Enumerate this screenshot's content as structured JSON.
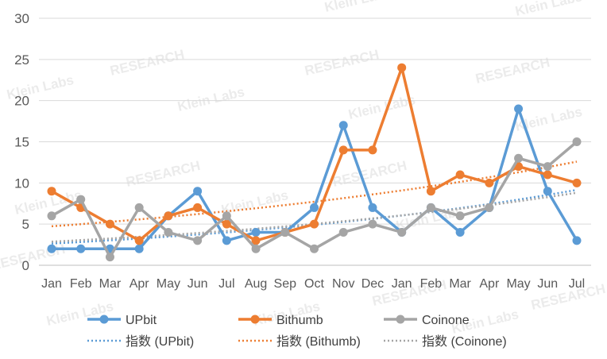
{
  "chart_data": {
    "type": "line",
    "title": "",
    "xlabel": "",
    "ylabel": "",
    "ylim": [
      0,
      30
    ],
    "yticks": [
      0,
      5,
      10,
      15,
      20,
      25,
      30
    ],
    "categories": [
      "Jan",
      "Feb",
      "Mar",
      "Apr",
      "May",
      "Jun",
      "Jul",
      "Aug",
      "Sep",
      "Oct",
      "Nov",
      "Dec",
      "Jan",
      "Feb",
      "Mar",
      "Apr",
      "May",
      "Jun",
      "Jul"
    ],
    "grid": "horizontal",
    "legend_position": "bottom",
    "series": [
      {
        "name": "UPbit",
        "color": "#5b9bd5",
        "values": [
          2,
          2,
          2,
          2,
          6,
          9,
          3,
          4,
          4,
          7,
          17,
          7,
          4,
          7,
          4,
          7,
          19,
          9,
          3
        ]
      },
      {
        "name": "Bithumb",
        "color": "#ed7d31",
        "values": [
          9,
          7,
          5,
          3,
          6,
          7,
          5,
          3,
          4,
          5,
          14,
          14,
          24,
          9,
          11,
          10,
          12,
          11,
          10
        ]
      },
      {
        "name": "Coinone",
        "color": "#a5a5a5",
        "values": [
          6,
          8,
          1,
          7,
          4,
          3,
          6,
          2,
          4,
          2,
          4,
          5,
          4,
          7,
          6,
          7,
          13,
          12,
          15
        ]
      }
    ],
    "trendlines": [
      {
        "name": "指数 (UPbit)",
        "series": "UPbit",
        "color": "#5b9bd5"
      },
      {
        "name": "指数 (Bithumb)",
        "series": "Bithumb",
        "color": "#ed7d31"
      },
      {
        "name": "指数 (Coinone)",
        "series": "Coinone",
        "color": "#a5a5a5"
      }
    ]
  },
  "watermarks": {
    "research": "RESEARCH",
    "klein": "Klein Labs"
  }
}
